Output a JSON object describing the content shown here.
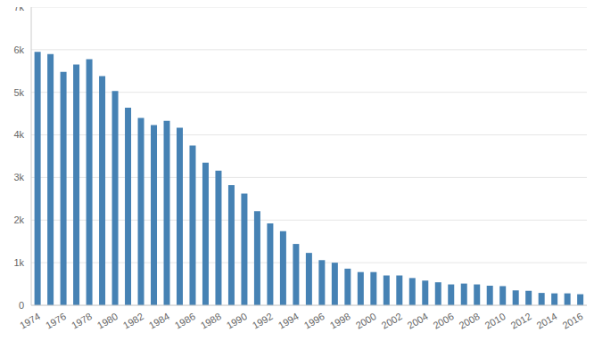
{
  "chart_data": {
    "type": "bar",
    "categories": [
      "1974",
      null,
      "1976",
      null,
      "1978",
      null,
      "1980",
      null,
      "1982",
      null,
      "1984",
      null,
      "1986",
      null,
      "1988",
      null,
      "1990",
      null,
      "1992",
      null,
      "1994",
      null,
      "1996",
      null,
      "1998",
      null,
      "2000",
      null,
      "2002",
      null,
      "2004",
      null,
      "2006",
      null,
      "2008",
      null,
      "2010",
      null,
      "2012",
      null,
      "2014",
      null,
      "2016"
    ],
    "values": [
      5950,
      5900,
      5480,
      5650,
      5780,
      5380,
      5030,
      4640,
      4400,
      4230,
      4330,
      4170,
      3750,
      3350,
      3160,
      2820,
      2620,
      2210,
      1920,
      1740,
      1440,
      1230,
      1060,
      1000,
      860,
      780,
      780,
      700,
      700,
      640,
      580,
      540,
      490,
      510,
      490,
      460,
      450,
      350,
      340,
      290,
      280,
      280,
      260
    ],
    "color": "#4682b4",
    "ylim": [
      0,
      7000
    ],
    "yticks": [
      0,
      {
        "value": 1000,
        "label": "1k"
      },
      {
        "value": 2000,
        "label": "2k"
      },
      {
        "value": 3000,
        "label": "3k"
      },
      {
        "value": 4000,
        "label": "4k"
      },
      {
        "value": 5000,
        "label": "5k"
      },
      {
        "value": 6000,
        "label": "6k"
      },
      {
        "value": 7000,
        "label": "7k"
      }
    ],
    "grid": true
  }
}
